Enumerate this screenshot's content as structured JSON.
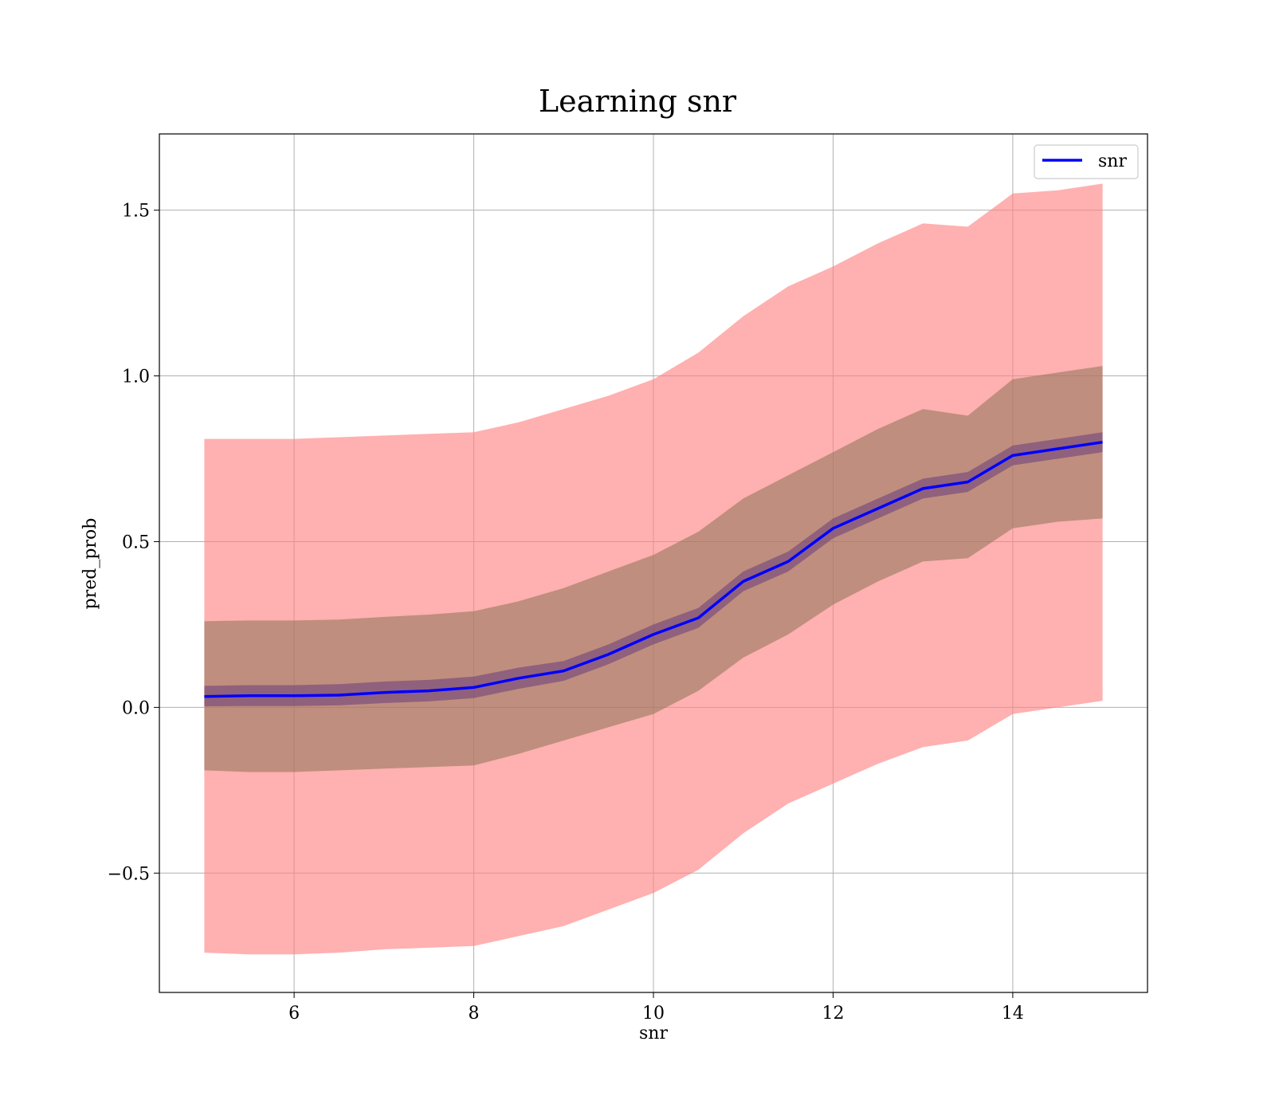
{
  "chart_data": {
    "type": "line",
    "title": "Learning snr",
    "xlabel": "snr",
    "ylabel": "pred_prob",
    "xlim": [
      4.5,
      15.5
    ],
    "ylim": [
      -0.86,
      1.73
    ],
    "xticks": [
      6,
      8,
      10,
      12,
      14
    ],
    "yticks": [
      -0.5,
      0.0,
      0.5,
      1.0,
      1.5
    ],
    "xtick_labels": [
      "6",
      "8",
      "10",
      "12",
      "14"
    ],
    "ytick_labels": [
      "−0.5",
      "0.0",
      "0.5",
      "1.0",
      "1.5"
    ],
    "grid": true,
    "legend_position": "top-right",
    "colors": {
      "line": "#0000ff",
      "outer_band": "#ff8080",
      "middle_band": "#8b7355",
      "inner_band": "#6a3d7a"
    },
    "x": [
      5.0,
      5.5,
      6.0,
      6.5,
      7.0,
      7.5,
      8.0,
      8.5,
      9.0,
      9.5,
      10.0,
      10.5,
      11.0,
      11.5,
      12.0,
      12.5,
      13.0,
      13.5,
      14.0,
      14.5,
      15.0
    ],
    "series": [
      {
        "name": "snr",
        "values": [
          0.033,
          0.035,
          0.035,
          0.037,
          0.045,
          0.05,
          0.06,
          0.088,
          0.11,
          0.16,
          0.22,
          0.27,
          0.38,
          0.44,
          0.54,
          0.6,
          0.66,
          0.68,
          0.76,
          0.78,
          0.8
        ]
      }
    ],
    "bands": [
      {
        "level": "outer",
        "upper": [
          0.81,
          0.81,
          0.81,
          0.815,
          0.82,
          0.825,
          0.83,
          0.86,
          0.9,
          0.94,
          0.99,
          1.07,
          1.18,
          1.27,
          1.33,
          1.4,
          1.46,
          1.45,
          1.55,
          1.56,
          1.58
        ],
        "lower": [
          -0.74,
          -0.745,
          -0.745,
          -0.74,
          -0.73,
          -0.725,
          -0.72,
          -0.69,
          -0.66,
          -0.61,
          -0.56,
          -0.49,
          -0.38,
          -0.29,
          -0.23,
          -0.17,
          -0.12,
          -0.1,
          -0.02,
          0.0,
          0.02
        ]
      },
      {
        "level": "middle",
        "upper": [
          0.26,
          0.262,
          0.262,
          0.265,
          0.273,
          0.28,
          0.29,
          0.32,
          0.36,
          0.41,
          0.46,
          0.53,
          0.63,
          0.7,
          0.77,
          0.84,
          0.9,
          0.88,
          0.99,
          1.01,
          1.03
        ],
        "lower": [
          -0.19,
          -0.195,
          -0.195,
          -0.19,
          -0.185,
          -0.18,
          -0.175,
          -0.14,
          -0.1,
          -0.06,
          -0.02,
          0.05,
          0.15,
          0.22,
          0.31,
          0.38,
          0.44,
          0.45,
          0.54,
          0.56,
          0.57
        ]
      },
      {
        "level": "inner",
        "upper": [
          0.065,
          0.067,
          0.067,
          0.07,
          0.078,
          0.083,
          0.093,
          0.12,
          0.14,
          0.19,
          0.25,
          0.3,
          0.41,
          0.47,
          0.57,
          0.63,
          0.69,
          0.71,
          0.79,
          0.81,
          0.83
        ],
        "lower": [
          0.003,
          0.004,
          0.004,
          0.006,
          0.013,
          0.018,
          0.028,
          0.056,
          0.08,
          0.13,
          0.19,
          0.24,
          0.35,
          0.41,
          0.51,
          0.57,
          0.63,
          0.65,
          0.73,
          0.75,
          0.77
        ]
      }
    ]
  }
}
